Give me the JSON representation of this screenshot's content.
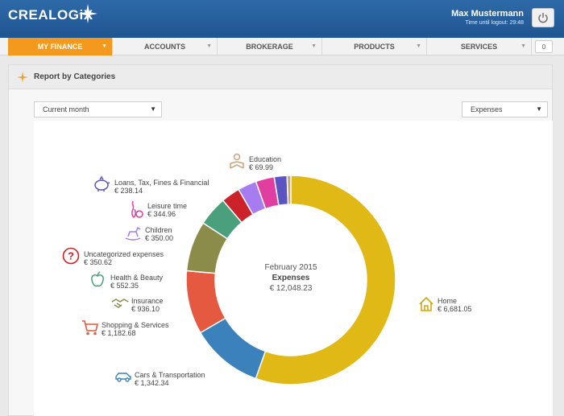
{
  "brand": {
    "logo": "CREALOGiX"
  },
  "user": {
    "name": "Max Mustermann",
    "timer": "Time until logout: 29:48"
  },
  "nav": {
    "items": [
      "MY FINANCE",
      "ACCOUNTS",
      "BROKERAGE",
      "PRODUCTS",
      "SERVICES"
    ],
    "badge": "0"
  },
  "panel": {
    "title": "Report by Categories"
  },
  "filters": {
    "period": "Current month",
    "type": "Expenses"
  },
  "summary": {
    "month": "February 2015",
    "type": "Expenses",
    "total": "€ 12,048.23"
  },
  "categories": [
    {
      "name": "Home",
      "amount": "€ 6,681.05",
      "color": "#e0b916",
      "icon": "home-icon"
    },
    {
      "name": "Cars & Transportation",
      "amount": "€ 1,342.34",
      "color": "#3b82bd",
      "icon": "car-icon"
    },
    {
      "name": "Shopping & Services",
      "amount": "€ 1,182.68",
      "color": "#e4593f",
      "icon": "cart-icon"
    },
    {
      "name": "Insurance",
      "amount": "€ 936.10",
      "color": "#8b8c4a",
      "icon": "handshake-icon"
    },
    {
      "name": "Health & Beauty",
      "amount": "€ 552.35",
      "color": "#4aa07c",
      "icon": "apple-icon"
    },
    {
      "name": "Uncategorized expenses",
      "amount": "€ 350.62",
      "color": "#cc2229",
      "icon": "question-icon"
    },
    {
      "name": "Children",
      "amount": "€ 350.00",
      "color": "#a67cf0",
      "icon": "rocking-horse-icon"
    },
    {
      "name": "Leisure time",
      "amount": "€ 344.96",
      "color": "#e03ea0",
      "icon": "bowling-icon"
    },
    {
      "name": "Loans, Tax, Fines & Financial",
      "amount": "€ 238.14",
      "color": "#5a55c0",
      "icon": "piggy-bank-icon"
    },
    {
      "name": "Education",
      "amount": "€ 69.99",
      "color": "#c9a37a",
      "icon": "reader-icon"
    }
  ],
  "chart_data": {
    "type": "pie",
    "categories": [
      "Home",
      "Cars & Transportation",
      "Shopping & Services",
      "Insurance",
      "Health & Beauty",
      "Uncategorized expenses",
      "Children",
      "Leisure time",
      "Loans, Tax, Fines & Financial",
      "Education"
    ],
    "values": [
      6681.05,
      1342.34,
      1182.68,
      936.1,
      552.35,
      350.62,
      350.0,
      344.96,
      238.14,
      69.99
    ]
  }
}
